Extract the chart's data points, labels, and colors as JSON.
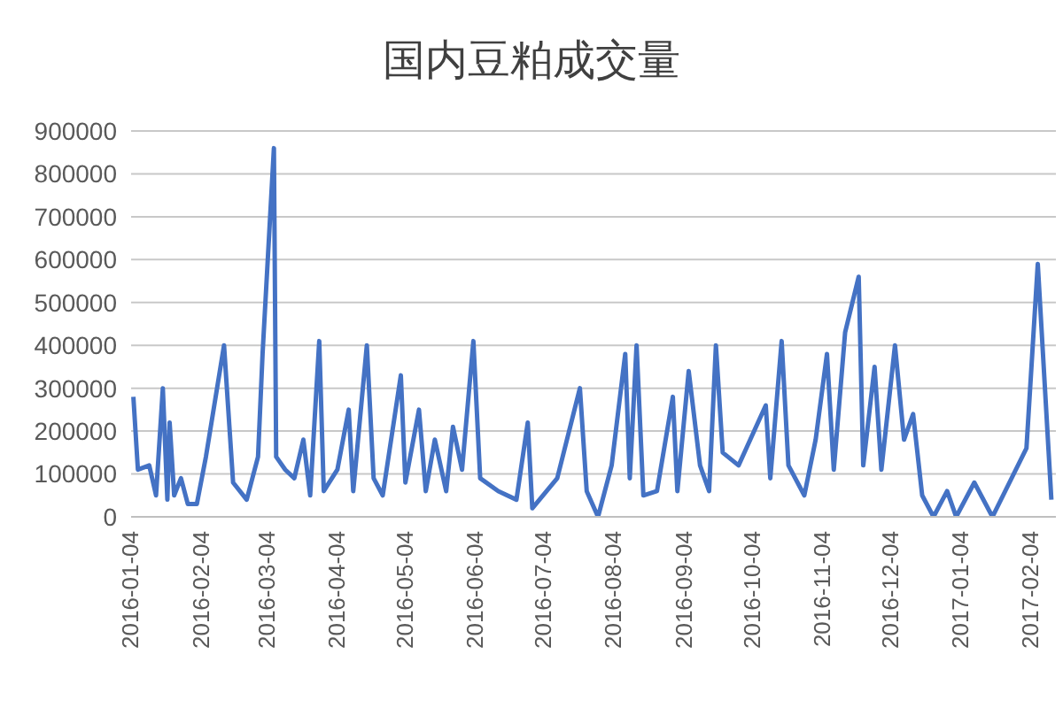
{
  "chart_data": {
    "type": "line",
    "title": "国内豆粕成交量",
    "x": [
      "2016-01-05",
      "2016-01-07",
      "2016-01-12",
      "2016-01-15",
      "2016-01-18",
      "2016-01-20",
      "2016-01-21",
      "2016-01-23",
      "2016-01-26",
      "2016-01-29",
      "2016-02-02",
      "2016-02-06",
      "2016-02-14",
      "2016-02-18",
      "2016-02-24",
      "2016-02-29",
      "2016-03-02",
      "2016-03-07",
      "2016-03-08",
      "2016-03-12",
      "2016-03-16",
      "2016-03-20",
      "2016-03-23",
      "2016-03-27",
      "2016-03-29",
      "2016-04-04",
      "2016-04-09",
      "2016-04-11",
      "2016-04-17",
      "2016-04-20",
      "2016-04-24",
      "2016-05-02",
      "2016-05-04",
      "2016-05-10",
      "2016-05-13",
      "2016-05-17",
      "2016-05-22",
      "2016-05-25",
      "2016-05-29",
      "2016-06-03",
      "2016-06-06",
      "2016-06-14",
      "2016-06-22",
      "2016-06-27",
      "2016-06-29",
      "2016-07-10",
      "2016-07-20",
      "2016-07-23",
      "2016-07-28",
      "2016-08-03",
      "2016-08-09",
      "2016-08-11",
      "2016-08-14",
      "2016-08-17",
      "2016-08-23",
      "2016-08-30",
      "2016-09-01",
      "2016-09-06",
      "2016-09-11",
      "2016-09-15",
      "2016-09-18",
      "2016-09-21",
      "2016-09-28",
      "2016-10-10",
      "2016-10-12",
      "2016-10-17",
      "2016-10-20",
      "2016-10-27",
      "2016-11-01",
      "2016-11-06",
      "2016-11-09",
      "2016-11-14",
      "2016-11-20",
      "2016-11-22",
      "2016-11-27",
      "2016-11-30",
      "2016-12-06",
      "2016-12-10",
      "2016-12-14",
      "2016-12-18",
      "2016-12-23",
      "2016-12-29",
      "2017-01-02",
      "2017-01-10",
      "2017-01-18",
      "2017-02-02",
      "2017-02-07",
      "2017-02-13"
    ],
    "series": [
      {
        "color": "#4472c4",
        "values": [
          280000,
          110000,
          120000,
          50000,
          300000,
          40000,
          220000,
          50000,
          90000,
          30000,
          30000,
          140000,
          400000,
          80000,
          40000,
          140000,
          380000,
          860000,
          140000,
          110000,
          90000,
          180000,
          50000,
          410000,
          60000,
          110000,
          250000,
          60000,
          400000,
          90000,
          50000,
          330000,
          80000,
          250000,
          60000,
          180000,
          60000,
          210000,
          110000,
          410000,
          90000,
          60000,
          40000,
          220000,
          20000,
          90000,
          300000,
          60000,
          0,
          120000,
          380000,
          90000,
          400000,
          50000,
          60000,
          280000,
          60000,
          340000,
          120000,
          60000,
          400000,
          150000,
          120000,
          260000,
          90000,
          410000,
          120000,
          50000,
          180000,
          380000,
          110000,
          430000,
          560000,
          120000,
          350000,
          110000,
          400000,
          180000,
          240000,
          50000,
          0,
          60000,
          0,
          80000,
          0,
          160000,
          590000,
          40000
        ]
      }
    ],
    "xlim": [
      "2016-01-04",
      "2017-02-15"
    ],
    "xticks": [
      {
        "value": "2016-01-04",
        "label": "2016-01-04"
      },
      {
        "value": "2016-02-04",
        "label": "2016-02-04"
      },
      {
        "value": "2016-03-04",
        "label": "2016-03-04"
      },
      {
        "value": "2016-04-04",
        "label": "2016-04-04"
      },
      {
        "value": "2016-05-04",
        "label": "2016-05-04"
      },
      {
        "value": "2016-06-04",
        "label": "2016-06-04"
      },
      {
        "value": "2016-07-04",
        "label": "2016-07-04"
      },
      {
        "value": "2016-08-04",
        "label": "2016-08-04"
      },
      {
        "value": "2016-09-04",
        "label": "2016-09-04"
      },
      {
        "value": "2016-10-04",
        "label": "2016-10-04"
      },
      {
        "value": "2016-11-04",
        "label": "2016-11-04"
      },
      {
        "value": "2016-12-04",
        "label": "2016-12-04"
      },
      {
        "value": "2017-01-04",
        "label": "2017-01-04"
      },
      {
        "value": "2017-02-04",
        "label": "2017-02-04"
      }
    ],
    "ylim": [
      0,
      900000
    ],
    "yticks": [
      0,
      100000,
      200000,
      300000,
      400000,
      500000,
      600000,
      700000,
      800000,
      900000
    ],
    "grid": "y",
    "legend": false,
    "marker": "none",
    "line_style": "solid"
  }
}
